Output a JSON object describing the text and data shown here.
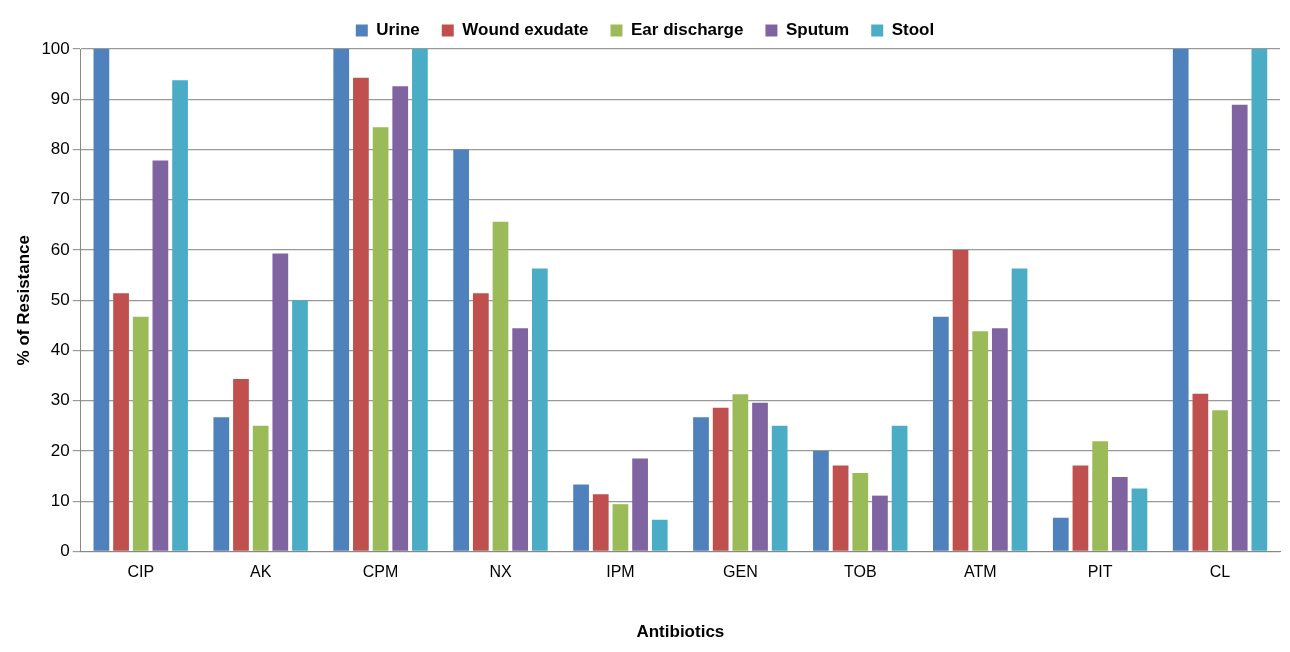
{
  "chart_data": {
    "type": "bar",
    "xlabel": "Antibiotics",
    "ylabel": "% of Resistance",
    "categories": [
      "CIP",
      "AK",
      "CPM",
      "NX",
      "IPM",
      "GEN",
      "TOB",
      "ATM",
      "PIT",
      "CL"
    ],
    "series": [
      {
        "name": "Urine",
        "color": "#4f81bd",
        "values": [
          100,
          26.7,
          100,
          80,
          13.3,
          26.7,
          20,
          46.7,
          6.7,
          100
        ]
      },
      {
        "name": "Wound exudate",
        "color": "#c0504d",
        "values": [
          51.4,
          34.3,
          94.3,
          51.4,
          11.4,
          28.6,
          17.1,
          60,
          17.1,
          31.4
        ]
      },
      {
        "name": "Ear discharge",
        "color": "#9bbb59",
        "values": [
          46.7,
          25,
          84.4,
          65.6,
          9.4,
          31.3,
          15.6,
          43.8,
          21.9,
          28.1
        ]
      },
      {
        "name": "Sputum",
        "color": "#8064a2",
        "values": [
          77.8,
          59.3,
          92.6,
          44.4,
          18.5,
          29.6,
          11.1,
          44.4,
          14.8,
          88.9
        ]
      },
      {
        "name": "Stool",
        "color": "#4bacc6",
        "values": [
          93.8,
          50,
          100,
          56.3,
          6.3,
          25,
          25,
          56.3,
          12.5,
          100
        ]
      }
    ],
    "ylim": [
      0,
      100
    ],
    "yticks": [
      0,
      10,
      20,
      30,
      40,
      50,
      60,
      70,
      80,
      90,
      100
    ],
    "grid": "y",
    "legend": "top"
  }
}
